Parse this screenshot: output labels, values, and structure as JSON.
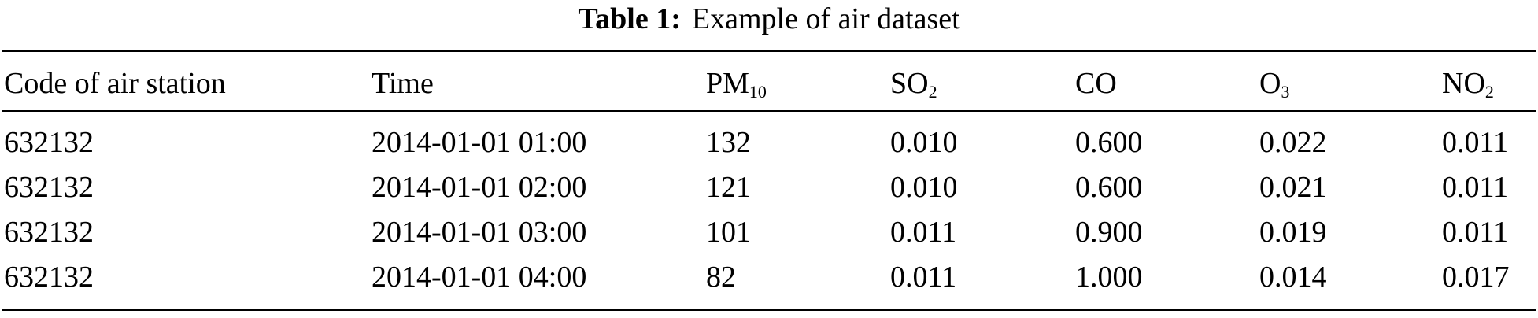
{
  "caption": {
    "label": "Table 1:",
    "text": "Example of air dataset"
  },
  "headers": [
    {
      "main": "Code of air station",
      "sub": ""
    },
    {
      "main": "Time",
      "sub": ""
    },
    {
      "main": "PM",
      "sub": "10"
    },
    {
      "main": "SO",
      "sub": "2"
    },
    {
      "main": "CO",
      "sub": ""
    },
    {
      "main": "O",
      "sub": "3"
    },
    {
      "main": "NO",
      "sub": "2"
    }
  ],
  "rows": [
    [
      "632132",
      "2014-01-01 01:00",
      "132",
      "0.010",
      "0.600",
      "0.022",
      "0.011"
    ],
    [
      "632132",
      "2014-01-01 02:00",
      "121",
      "0.010",
      "0.600",
      "0.021",
      "0.011"
    ],
    [
      "632132",
      "2014-01-01 03:00",
      "101",
      "0.011",
      "0.900",
      "0.019",
      "0.011"
    ],
    [
      "632132",
      "2014-01-01 04:00",
      "82",
      "0.011",
      "1.000",
      "0.014",
      "0.017"
    ]
  ]
}
